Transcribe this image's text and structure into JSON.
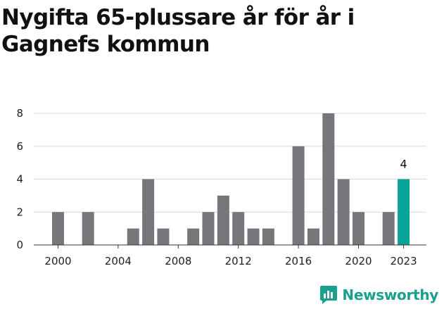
{
  "title": "Nygifta 65-plussare år för år i Gagnefs kommun",
  "brand": {
    "name": "Newsworthy",
    "icon": "newsworthy-logo-icon",
    "color": "#1aa08d"
  },
  "colors": {
    "bar": "#77767b",
    "highlight": "#0aa399",
    "grid": "#d9d9d9",
    "axis": "#333333"
  },
  "chart_data": {
    "type": "bar",
    "categories": [
      "2000",
      "2001",
      "2002",
      "2003",
      "2004",
      "2005",
      "2006",
      "2007",
      "2008",
      "2009",
      "2010",
      "2011",
      "2012",
      "2013",
      "2014",
      "2015",
      "2016",
      "2017",
      "2018",
      "2019",
      "2020",
      "2021",
      "2022",
      "2023"
    ],
    "values": [
      2,
      0,
      2,
      0,
      0,
      1,
      4,
      1,
      0,
      1,
      2,
      3,
      2,
      1,
      1,
      0,
      6,
      1,
      8,
      4,
      2,
      0,
      2,
      4
    ],
    "highlight_category": "2023",
    "data_labels": [
      {
        "category": "2023",
        "text": "4"
      }
    ],
    "x_tick_labels": [
      "2000",
      "2004",
      "2008",
      "2012",
      "2016",
      "2020",
      "2023"
    ],
    "y_tick_labels": [
      "0",
      "2",
      "4",
      "6",
      "8"
    ],
    "ylim": [
      0,
      8
    ],
    "grid": true,
    "title": "Nygifta 65-plussare år för år i Gagnefs kommun",
    "xlabel": "",
    "ylabel": ""
  }
}
